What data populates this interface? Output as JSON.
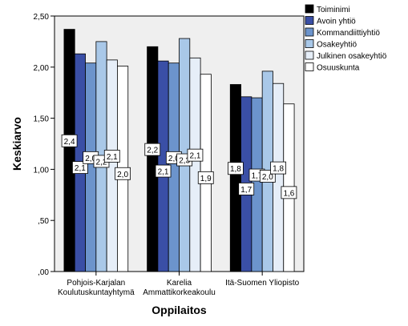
{
  "chart_data": {
    "type": "bar",
    "title": "",
    "xlabel": "Oppilaitos",
    "ylabel": "Keskiarvo",
    "ylim": [
      0,
      2.5
    ],
    "yticks": [
      ",00",
      ",50",
      "1,00",
      "1,50",
      "2,00",
      "2,50"
    ],
    "ytick_values": [
      0,
      0.5,
      1.0,
      1.5,
      2.0,
      2.5
    ],
    "categories": [
      [
        "Pohjois-Karjalan",
        "Koulutuskuntayhtymä"
      ],
      [
        "Karelia",
        "Ammattikorkeakoulu"
      ],
      [
        "Itä-Suomen Yliopisto"
      ]
    ],
    "legend_position": "top-right",
    "grid": false,
    "series": [
      {
        "name": "Toiminimi",
        "color": "#000000",
        "values": [
          2.37,
          2.2,
          1.83
        ],
        "labels": [
          "2,4",
          "2,2",
          "1,8"
        ]
      },
      {
        "name": "Avoin yhtiö",
        "color": "#3a4fa6",
        "values": [
          2.13,
          2.06,
          1.71
        ],
        "labels": [
          "2,1",
          "2,1",
          "1,7"
        ]
      },
      {
        "name": "Kommandiittiyhtiö",
        "color": "#6c94cc",
        "values": [
          2.04,
          2.04,
          1.7
        ],
        "labels": [
          "2,0",
          "2,0",
          "1,7"
        ]
      },
      {
        "name": "Osakeyhtiö",
        "color": "#a9c8e8",
        "values": [
          2.25,
          2.28,
          1.96
        ],
        "labels": [
          "2,2",
          "2,3",
          "2,0"
        ]
      },
      {
        "name": "Julkinen osakeyhtiö",
        "color": "#e6eef8",
        "values": [
          2.07,
          2.09,
          1.84
        ],
        "labels": [
          "2,1",
          "2,1",
          "1,8"
        ]
      },
      {
        "name": "Osuuskunta",
        "color": "#ffffff",
        "values": [
          2.01,
          1.93,
          1.64
        ],
        "labels": [
          "2,0",
          "1,9",
          "1,6"
        ]
      }
    ]
  }
}
